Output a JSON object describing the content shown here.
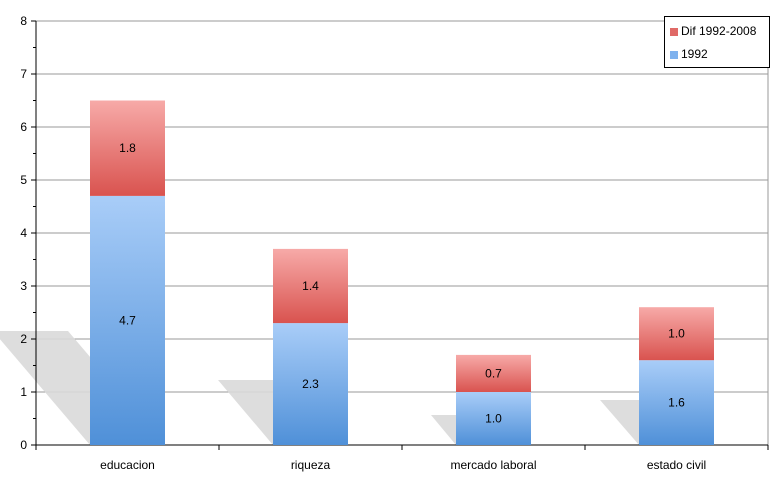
{
  "chart_data": {
    "type": "bar",
    "stacked": true,
    "categories": [
      "educacion",
      "riqueza",
      "mercado laboral",
      "estado civil"
    ],
    "series": [
      {
        "name": "1992",
        "values": [
          4.7,
          2.3,
          1.0,
          1.6
        ],
        "labels": [
          "4.7",
          "2.3",
          "1.0",
          "1.6"
        ],
        "color_top": "#a9cdf8",
        "color_bottom": "#4f90d8"
      },
      {
        "name": "Dif 1992-2008",
        "values": [
          1.8,
          1.4,
          0.7,
          1.0
        ],
        "labels": [
          "1.8",
          "1.4",
          "0.7",
          "1.0"
        ],
        "color_top": "#f7aaa8",
        "color_bottom": "#d9534f"
      }
    ],
    "yticks": [
      "0",
      "1",
      "2",
      "3",
      "4",
      "5",
      "6",
      "7",
      "8"
    ],
    "ylim": [
      0,
      8
    ],
    "grid": true,
    "legend_position": "top-right",
    "title": "",
    "xlabel": "",
    "ylabel": ""
  },
  "legend": {
    "items": [
      {
        "label": "Dif 1992-2008",
        "color": "#e06a67"
      },
      {
        "label": "1992",
        "color": "#7fb2ee"
      }
    ]
  }
}
